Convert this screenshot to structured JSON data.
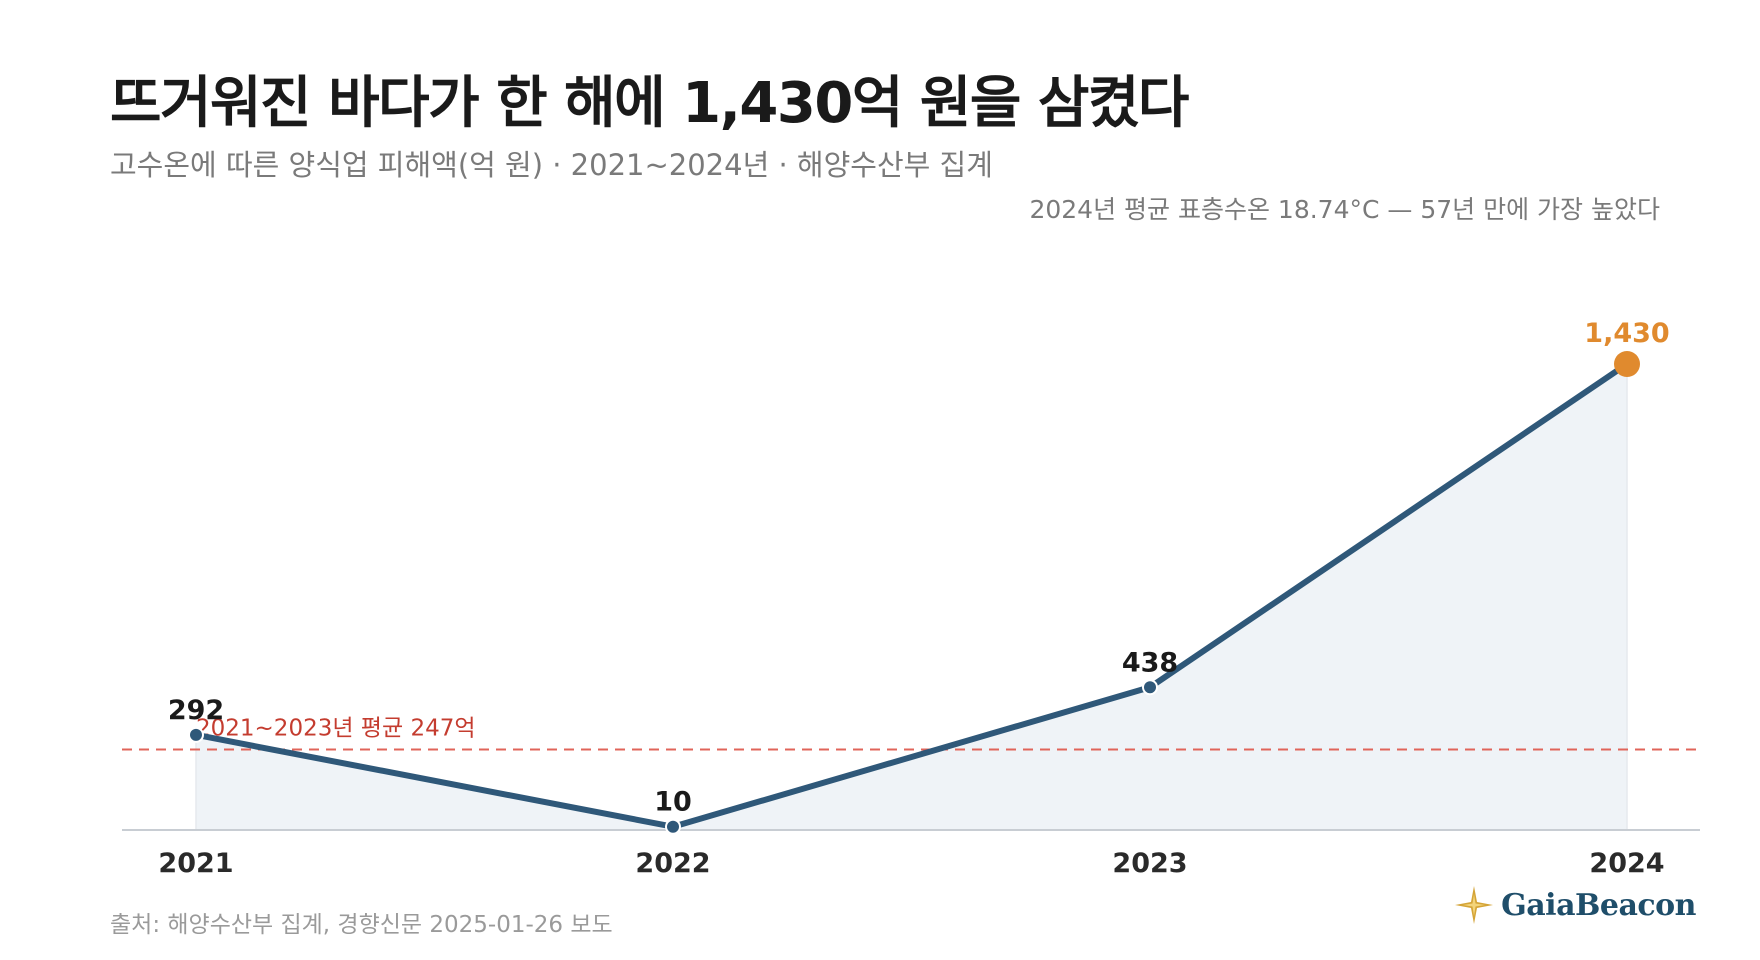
{
  "header": {
    "title": "뜨거워진 바다가 한 해에 1,430억 원을 삼켰다",
    "subtitle": "고수온에 따른 양식업 피해액(억 원) · 2021~2024년 · 해양수산부 집계",
    "note": "2024년 평균 표층수온 18.74°C — 57년 만에 가장 높았다"
  },
  "footer": {
    "source": "출처: 해양수산부 집계, 경향신문 2025-01-26 보도",
    "logo": "GaiaBeacon",
    "logo_icon": "compass-star-icon"
  },
  "chart_data": {
    "type": "area",
    "title": "뜨거워진 바다가 한 해에 1,430억 원을 삼켰다",
    "xlabel": "",
    "ylabel": "",
    "categories": [
      "2021",
      "2022",
      "2023",
      "2024"
    ],
    "series": [
      {
        "values": [
          292,
          10,
          438,
          1430
        ],
        "data_labels": [
          "292",
          "10",
          "438",
          "1,430"
        ]
      }
    ],
    "highlight_index": 3,
    "reference_line": {
      "value": 247,
      "label": "2021~2023년 평균 247억"
    },
    "ylim": [
      0,
      1430
    ],
    "grid": false,
    "legend": "none",
    "colors": {
      "line": "#2f5879",
      "area": "#eff3f7",
      "highlight": "#e08a2e",
      "reference": "#e0645a",
      "reference_text": "#c43c2f",
      "axis": "#c8cdd3"
    }
  }
}
